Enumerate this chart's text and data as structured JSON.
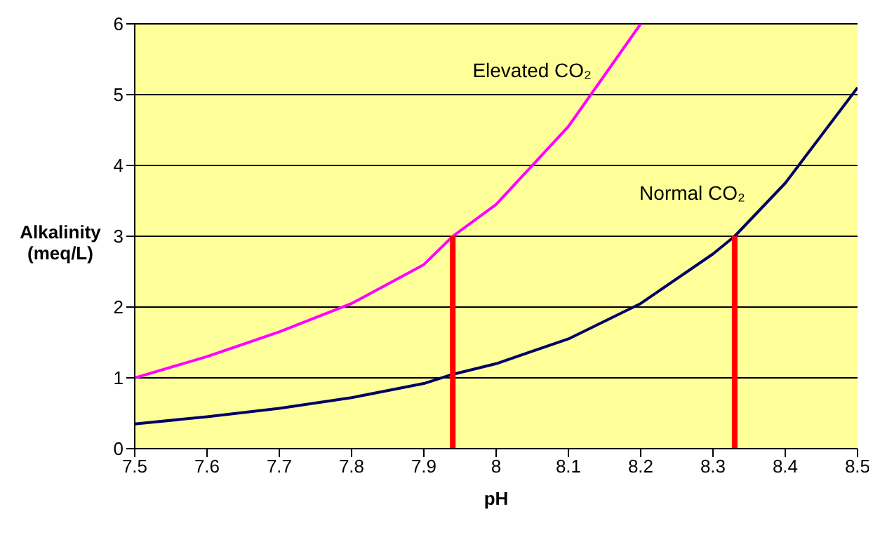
{
  "chart_data": {
    "type": "line",
    "xlabel": "pH",
    "ylabel": "Alkalinity (meq/L)",
    "xlim": [
      7.5,
      8.5
    ],
    "xticks": [
      7.5,
      7.6,
      7.7,
      7.8,
      7.9,
      8,
      8.1,
      8.2,
      8.3,
      8.4,
      8.5
    ],
    "ylim": [
      0,
      6
    ],
    "yticks": [
      0,
      1,
      2,
      3,
      4,
      5,
      6
    ],
    "grid": "y",
    "series": [
      {
        "name": "Elevated CO₂",
        "color": "#ff00ff",
        "x": [
          7.5,
          7.6,
          7.7,
          7.8,
          7.9,
          7.94,
          8.0,
          8.1,
          8.2
        ],
        "values": [
          1.0,
          1.3,
          1.65,
          2.05,
          2.6,
          3.0,
          3.45,
          4.55,
          6.0
        ]
      },
      {
        "name": "Normal CO₂",
        "color": "#000066",
        "x": [
          7.5,
          7.6,
          7.7,
          7.8,
          7.9,
          7.94,
          8.0,
          8.1,
          8.2,
          8.3,
          8.33,
          8.4,
          8.5
        ],
        "values": [
          0.35,
          0.45,
          0.57,
          0.72,
          0.92,
          1.05,
          1.2,
          1.55,
          2.05,
          2.75,
          3.0,
          3.75,
          5.1
        ]
      },
      {
        "color": "#ff0000",
        "x": [
          7.94,
          7.94
        ],
        "values": [
          0,
          3
        ]
      },
      {
        "color": "#ff0000",
        "x": [
          8.33,
          8.33
        ],
        "values": [
          0,
          3
        ]
      }
    ]
  }
}
